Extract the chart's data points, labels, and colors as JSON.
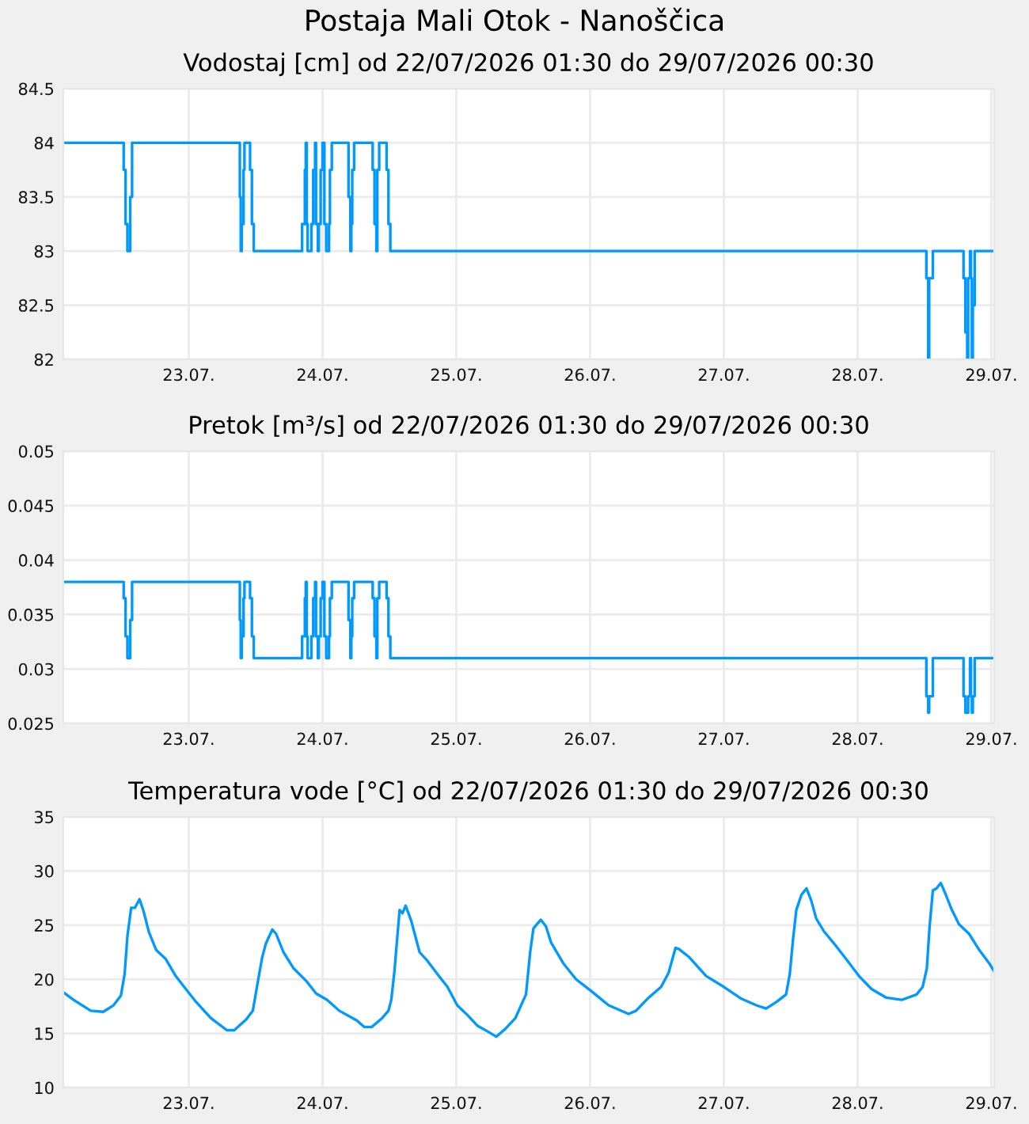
{
  "chart_data": [
    {
      "type": "step",
      "title": "Postaja Mali Otok - Nanoščica",
      "subtitle": "Vodostaj [cm] od 22/07/2026 01:30 do 29/07/2026 00:30",
      "series": [
        {
          "color": "#0099ff",
          "x": [
            "2026-07-22T01:30",
            "2026-07-22T12:20",
            "2026-07-22T12:40",
            "2026-07-22T13:00",
            "2026-07-22T13:30",
            "2026-07-22T13:50",
            "2026-07-23T09:10",
            "2026-07-23T09:20",
            "2026-07-23T09:30",
            "2026-07-23T09:50",
            "2026-07-23T10:00",
            "2026-07-23T11:00",
            "2026-07-23T11:20",
            "2026-07-23T11:40",
            "2026-07-23T20:20",
            "2026-07-23T20:50",
            "2026-07-23T21:00",
            "2026-07-23T21:10",
            "2026-07-23T21:20",
            "2026-07-23T22:00",
            "2026-07-23T22:20",
            "2026-07-23T22:40",
            "2026-07-23T22:50",
            "2026-07-23T23:10",
            "2026-07-23T23:20",
            "2026-07-23T23:40",
            "2026-07-24T00:00",
            "2026-07-24T00:20",
            "2026-07-24T00:40",
            "2026-07-24T01:10",
            "2026-07-24T01:20",
            "2026-07-24T01:40",
            "2026-07-24T04:40",
            "2026-07-24T05:00",
            "2026-07-24T05:10",
            "2026-07-24T05:20",
            "2026-07-24T05:40",
            "2026-07-24T09:00",
            "2026-07-24T09:20",
            "2026-07-24T09:40",
            "2026-07-24T09:50",
            "2026-07-24T10:10",
            "2026-07-24T11:30",
            "2026-07-24T11:50",
            "2026-07-24T12:10",
            "2026-07-28T12:20",
            "2026-07-28T12:40",
            "2026-07-28T12:50",
            "2026-07-28T13:30",
            "2026-07-28T19:00",
            "2026-07-28T19:20",
            "2026-07-28T19:40",
            "2026-07-28T19:50",
            "2026-07-28T20:10",
            "2026-07-28T20:20",
            "2026-07-28T20:30",
            "2026-07-28T20:40",
            "2026-07-28T21:00",
            "2026-07-29T00:30"
          ],
          "values": [
            84,
            83.75,
            83.25,
            83,
            83.5,
            84,
            83.5,
            83,
            83.25,
            83.75,
            84,
            83.75,
            83.25,
            83,
            83.25,
            83.75,
            84,
            83.25,
            83,
            83.25,
            83.75,
            84,
            83.25,
            83,
            83.25,
            83.75,
            84,
            83.25,
            83,
            83.25,
            83.75,
            84,
            83.5,
            83,
            83.25,
            83.75,
            84,
            83.75,
            83.25,
            83,
            83.75,
            84,
            83.75,
            83.25,
            83,
            82.75,
            82,
            82.75,
            83,
            82.75,
            82.25,
            82,
            82.75,
            83,
            82.75,
            82,
            82.5,
            83,
            83
          ]
        }
      ],
      "xlim": [
        "2026-07-22T01:30",
        "2026-07-29T00:30"
      ],
      "xticks": [
        {
          "value": "2026-07-23",
          "label": "23.07."
        },
        {
          "value": "2026-07-24",
          "label": "24.07."
        },
        {
          "value": "2026-07-25",
          "label": "25.07."
        },
        {
          "value": "2026-07-26",
          "label": "26.07."
        },
        {
          "value": "2026-07-27",
          "label": "27.07."
        },
        {
          "value": "2026-07-28",
          "label": "28.07."
        },
        {
          "value": "2026-07-29",
          "label": "29.07."
        }
      ],
      "ylim": [
        82,
        84.5
      ],
      "yticks": [
        82,
        82.5,
        83,
        83.5,
        84,
        84.5
      ],
      "grid": true
    },
    {
      "type": "step",
      "title": "Pretok [m³/s] od 22/07/2026 01:30 do 29/07/2026 00:30",
      "series": [
        {
          "color": "#0099ff",
          "x": [
            "2026-07-22T01:30",
            "2026-07-22T12:20",
            "2026-07-22T12:40",
            "2026-07-22T13:00",
            "2026-07-22T13:30",
            "2026-07-22T13:50",
            "2026-07-23T09:10",
            "2026-07-23T09:20",
            "2026-07-23T09:30",
            "2026-07-23T09:50",
            "2026-07-23T10:00",
            "2026-07-23T11:00",
            "2026-07-23T11:20",
            "2026-07-23T11:40",
            "2026-07-23T20:20",
            "2026-07-23T20:50",
            "2026-07-23T21:00",
            "2026-07-23T21:10",
            "2026-07-23T21:20",
            "2026-07-23T22:00",
            "2026-07-23T22:20",
            "2026-07-23T22:40",
            "2026-07-23T22:50",
            "2026-07-23T23:10",
            "2026-07-23T23:20",
            "2026-07-23T23:40",
            "2026-07-24T00:00",
            "2026-07-24T00:20",
            "2026-07-24T00:40",
            "2026-07-24T01:10",
            "2026-07-24T01:20",
            "2026-07-24T01:40",
            "2026-07-24T04:40",
            "2026-07-24T05:00",
            "2026-07-24T05:10",
            "2026-07-24T05:20",
            "2026-07-24T05:40",
            "2026-07-24T09:00",
            "2026-07-24T09:20",
            "2026-07-24T09:40",
            "2026-07-24T09:50",
            "2026-07-24T10:10",
            "2026-07-24T11:30",
            "2026-07-24T11:50",
            "2026-07-24T12:10",
            "2026-07-28T12:20",
            "2026-07-28T12:40",
            "2026-07-28T12:50",
            "2026-07-28T13:30",
            "2026-07-28T19:00",
            "2026-07-28T19:20",
            "2026-07-28T19:40",
            "2026-07-28T19:50",
            "2026-07-28T20:10",
            "2026-07-28T20:20",
            "2026-07-28T20:30",
            "2026-07-28T20:40",
            "2026-07-28T21:00",
            "2026-07-29T00:30"
          ],
          "values": [
            0.038,
            0.0365,
            0.033,
            0.031,
            0.0345,
            0.038,
            0.0345,
            0.031,
            0.033,
            0.0365,
            0.038,
            0.0365,
            0.033,
            0.031,
            0.033,
            0.0365,
            0.038,
            0.033,
            0.031,
            0.033,
            0.0365,
            0.038,
            0.033,
            0.031,
            0.033,
            0.0365,
            0.038,
            0.033,
            0.031,
            0.033,
            0.0365,
            0.038,
            0.0345,
            0.031,
            0.033,
            0.0365,
            0.038,
            0.0365,
            0.033,
            0.031,
            0.0365,
            0.038,
            0.0365,
            0.033,
            0.031,
            0.0275,
            0.026,
            0.0275,
            0.031,
            0.0275,
            0.026,
            0.026,
            0.0275,
            0.031,
            0.0275,
            0.026,
            0.0275,
            0.031,
            0.031
          ]
        }
      ],
      "xlim": [
        "2026-07-22T01:30",
        "2026-07-29T00:30"
      ],
      "xticks": [
        {
          "value": "2026-07-23",
          "label": "23.07."
        },
        {
          "value": "2026-07-24",
          "label": "24.07."
        },
        {
          "value": "2026-07-25",
          "label": "25.07."
        },
        {
          "value": "2026-07-26",
          "label": "26.07."
        },
        {
          "value": "2026-07-27",
          "label": "27.07."
        },
        {
          "value": "2026-07-28",
          "label": "28.07."
        },
        {
          "value": "2026-07-29",
          "label": "29.07."
        }
      ],
      "ylim": [
        0.025,
        0.05
      ],
      "yticks": [
        0.025,
        0.03,
        0.035,
        0.04,
        0.045,
        0.05
      ],
      "grid": true
    },
    {
      "type": "line",
      "title": "Temperatura vode [°C] od 22/07/2026 01:30 do 29/07/2026 00:30",
      "series": [
        {
          "color": "#0099ff",
          "x": [
            "2026-07-22T01:30",
            "2026-07-22T03:20",
            "2026-07-22T06:25",
            "2026-07-22T08:40",
            "2026-07-22T10:30",
            "2026-07-22T11:50",
            "2026-07-22T12:30",
            "2026-07-22T13:00",
            "2026-07-22T13:40",
            "2026-07-22T14:20",
            "2026-07-22T15:10",
            "2026-07-22T15:50",
            "2026-07-22T16:50",
            "2026-07-22T18:10",
            "2026-07-22T19:50",
            "2026-07-22T21:40",
            "2026-07-22T23:10",
            "2026-07-23T01:20",
            "2026-07-23T04:00",
            "2026-07-23T06:50",
            "2026-07-23T08:10",
            "2026-07-23T10:20",
            "2026-07-23T11:30",
            "2026-07-23T12:20",
            "2026-07-23T13:10",
            "2026-07-23T13:50",
            "2026-07-23T15:00",
            "2026-07-23T15:40",
            "2026-07-23T17:00",
            "2026-07-23T18:50",
            "2026-07-23T21:10",
            "2026-07-23T22:50",
            "2026-07-24T00:50",
            "2026-07-24T03:00",
            "2026-07-24T06:10",
            "2026-07-24T07:30",
            "2026-07-24T08:50",
            "2026-07-24T10:40",
            "2026-07-24T11:50",
            "2026-07-24T12:20",
            "2026-07-24T12:55",
            "2026-07-24T13:20",
            "2026-07-24T13:50",
            "2026-07-24T14:20",
            "2026-07-24T14:55",
            "2026-07-24T15:55",
            "2026-07-24T17:25",
            "2026-07-24T18:50",
            "2026-07-24T20:35",
            "2026-07-24T22:25",
            "2026-07-25T00:10",
            "2026-07-25T02:00",
            "2026-07-25T03:50",
            "2026-07-25T05:35",
            "2026-07-25T07:10",
            "2026-07-25T08:45",
            "2026-07-25T10:35",
            "2026-07-25T12:30",
            "2026-07-25T13:15",
            "2026-07-25T13:50",
            "2026-07-25T15:10",
            "2026-07-25T16:05",
            "2026-07-25T17:00",
            "2026-07-25T19:10",
            "2026-07-25T21:30",
            "2026-07-26T00:00",
            "2026-07-26T03:20",
            "2026-07-26T06:55",
            "2026-07-26T08:15",
            "2026-07-26T10:30",
            "2026-07-26T12:45",
            "2026-07-26T14:05",
            "2026-07-26T15:20",
            "2026-07-26T15:55",
            "2026-07-26T17:40",
            "2026-07-26T20:50",
            "2026-07-27T00:00",
            "2026-07-27T03:10",
            "2026-07-27T05:50",
            "2026-07-27T07:35",
            "2026-07-27T09:25",
            "2026-07-27T11:10",
            "2026-07-27T11:50",
            "2026-07-27T12:25",
            "2026-07-27T13:00",
            "2026-07-27T13:55",
            "2026-07-27T14:50",
            "2026-07-27T15:40",
            "2026-07-27T16:35",
            "2026-07-27T18:00",
            "2026-07-27T20:15",
            "2026-07-27T22:30",
            "2026-07-28T00:15",
            "2026-07-28T02:30",
            "2026-07-28T05:10",
            "2026-07-28T07:55",
            "2026-07-28T10:35",
            "2026-07-28T11:40",
            "2026-07-28T12:25",
            "2026-07-28T12:55",
            "2026-07-28T13:30",
            "2026-07-28T14:10",
            "2026-07-28T14:55",
            "2026-07-28T15:50",
            "2026-07-28T16:50",
            "2026-07-28T18:10",
            "2026-07-28T20:00",
            "2026-07-28T21:50",
            "2026-07-28T23:35",
            "2026-07-29T00:25"
          ],
          "values": [
            18.8,
            18.1,
            17.1,
            17.0,
            17.6,
            18.5,
            20.5,
            24.0,
            26.6,
            26.6,
            27.4,
            26.4,
            24.4,
            22.7,
            21.9,
            20.3,
            19.3,
            17.9,
            16.4,
            15.3,
            15.3,
            16.3,
            17.1,
            19.6,
            22.0,
            23.3,
            24.6,
            24.2,
            22.5,
            21.0,
            19.8,
            18.7,
            18.1,
            17.1,
            16.2,
            15.6,
            15.6,
            16.4,
            17.1,
            18.1,
            20.8,
            23.4,
            26.4,
            26.1,
            26.8,
            25.4,
            22.5,
            21.7,
            20.5,
            19.3,
            17.6,
            16.7,
            15.7,
            15.2,
            14.7,
            15.4,
            16.4,
            18.6,
            22.5,
            24.7,
            25.5,
            24.9,
            23.4,
            21.5,
            20.0,
            19.0,
            17.6,
            16.8,
            17.1,
            18.3,
            19.3,
            20.6,
            22.9,
            22.8,
            22.1,
            20.3,
            19.3,
            18.2,
            17.6,
            17.3,
            17.9,
            18.6,
            20.5,
            23.7,
            26.4,
            27.8,
            28.4,
            27.3,
            25.6,
            24.4,
            23.0,
            21.5,
            20.3,
            19.1,
            18.3,
            18.1,
            18.6,
            19.3,
            21.0,
            24.9,
            28.2,
            28.4,
            28.9,
            27.8,
            26.5,
            25.1,
            24.2,
            22.7,
            21.5,
            20.8
          ]
        }
      ],
      "xlim": [
        "2026-07-22T01:30",
        "2026-07-29T00:30"
      ],
      "xticks": [
        {
          "value": "2026-07-23",
          "label": "23.07."
        },
        {
          "value": "2026-07-24",
          "label": "24.07."
        },
        {
          "value": "2026-07-25",
          "label": "25.07."
        },
        {
          "value": "2026-07-26",
          "label": "26.07."
        },
        {
          "value": "2026-07-27",
          "label": "27.07."
        },
        {
          "value": "2026-07-28",
          "label": "28.07."
        },
        {
          "value": "2026-07-29",
          "label": "29.07."
        }
      ],
      "ylim": [
        10,
        35
      ],
      "yticks": [
        10,
        15,
        20,
        25,
        30,
        35
      ],
      "grid": true
    }
  ]
}
